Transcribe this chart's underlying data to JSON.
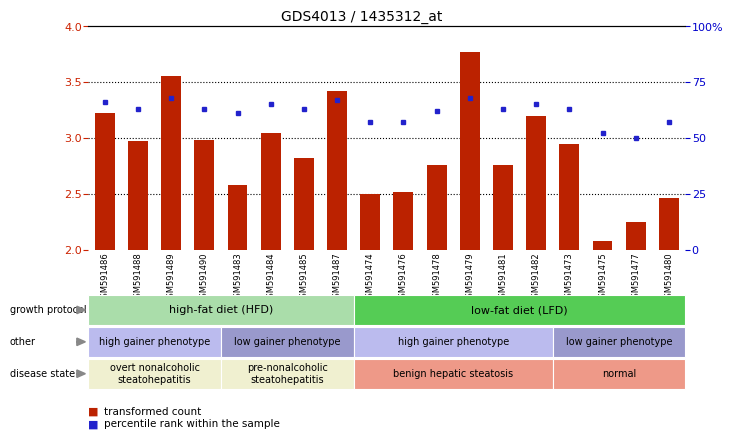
{
  "title": "GDS4013 / 1435312_at",
  "samples": [
    "GSM591486",
    "GSM591488",
    "GSM591489",
    "GSM591490",
    "GSM591483",
    "GSM591484",
    "GSM591485",
    "GSM591487",
    "GSM591474",
    "GSM591476",
    "GSM591478",
    "GSM591479",
    "GSM591481",
    "GSM591482",
    "GSM591473",
    "GSM591475",
    "GSM591477",
    "GSM591480"
  ],
  "bar_values": [
    3.22,
    2.97,
    3.55,
    2.98,
    2.58,
    3.04,
    2.82,
    3.42,
    2.5,
    2.52,
    2.76,
    3.77,
    2.76,
    3.2,
    2.95,
    2.08,
    2.25,
    2.46
  ],
  "dot_values": [
    66,
    63,
    68,
    63,
    61,
    65,
    63,
    67,
    57,
    57,
    62,
    68,
    63,
    65,
    63,
    52,
    50,
    57
  ],
  "bar_color": "#bb2200",
  "dot_color": "#2222cc",
  "ylim_left": [
    2.0,
    4.0
  ],
  "ylim_right": [
    0,
    100
  ],
  "yticks_left": [
    2.0,
    2.5,
    3.0,
    3.5,
    4.0
  ],
  "yticks_right": [
    0,
    25,
    50,
    75,
    100
  ],
  "ytick_labels_right": [
    "0",
    "25",
    "50",
    "75",
    "100%"
  ],
  "hlines": [
    2.5,
    3.0,
    3.5
  ],
  "left_color": "#cc2200",
  "right_color": "#0000cc",
  "groups": [
    {
      "label": "high-fat diet (HFD)",
      "start": 0,
      "end": 8,
      "color": "#aaddaa"
    },
    {
      "label": "low-fat diet (LFD)",
      "start": 8,
      "end": 18,
      "color": "#55cc55"
    }
  ],
  "subgroups": [
    {
      "label": "high gainer phenotype",
      "start": 0,
      "end": 4,
      "color": "#bbbbee"
    },
    {
      "label": "low gainer phenotype",
      "start": 4,
      "end": 8,
      "color": "#9999cc"
    },
    {
      "label": "high gainer phenotype",
      "start": 8,
      "end": 14,
      "color": "#bbbbee"
    },
    {
      "label": "low gainer phenotype",
      "start": 14,
      "end": 18,
      "color": "#9999cc"
    }
  ],
  "disease_groups": [
    {
      "label": "overt nonalcoholic\nsteatohepatitis",
      "start": 0,
      "end": 4,
      "color": "#f0f0d0"
    },
    {
      "label": "pre-nonalcoholic\nsteatohepatitis",
      "start": 4,
      "end": 8,
      "color": "#f0f0d0"
    },
    {
      "label": "benign hepatic steatosis",
      "start": 8,
      "end": 14,
      "color": "#ee9988"
    },
    {
      "label": "normal",
      "start": 14,
      "end": 18,
      "color": "#ee9988"
    }
  ],
  "row_labels": [
    "growth protocol",
    "other",
    "disease state"
  ],
  "bar_bottom": 2.0
}
